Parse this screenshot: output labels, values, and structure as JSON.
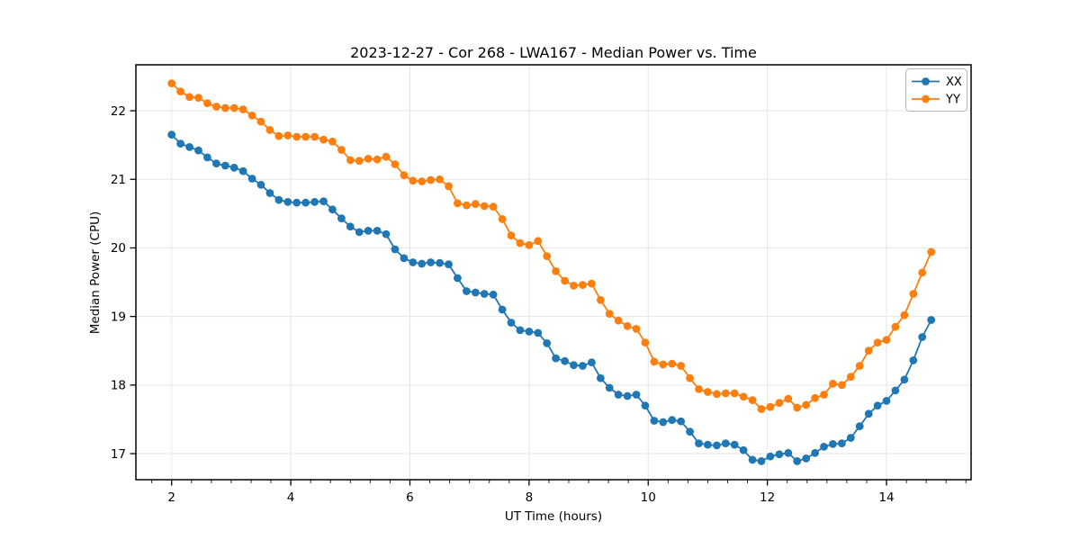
{
  "figure": {
    "background": "#ffffff"
  },
  "chart_data": {
    "type": "line",
    "title": "2023-12-27 - Cor 268 - LWA167 - Median Power vs. Time",
    "xlabel": "UT Time (hours)",
    "ylabel": "Median Power (CPU)",
    "xlim": [
      1.4,
      15.42
    ],
    "ylim": [
      16.62,
      22.67
    ],
    "xticks": [
      2,
      4,
      6,
      8,
      10,
      12,
      14
    ],
    "yticks": [
      17,
      18,
      19,
      20,
      21,
      22
    ],
    "x_minor_step": 0.3333,
    "grid": true,
    "legend_position": "upper right",
    "colors": {
      "grid": "#e6e6e6",
      "spine": "#000000",
      "text": "#000000",
      "legend_border": "#b3b3b3",
      "series_xx": "#1f77b4",
      "series_yy": "#ff7f0e"
    },
    "x": [
      2.0,
      2.15,
      2.3,
      2.45,
      2.6,
      2.75,
      2.9,
      3.05,
      3.2,
      3.35,
      3.5,
      3.65,
      3.8,
      3.95,
      4.1,
      4.25,
      4.4,
      4.55,
      4.7,
      4.85,
      5.0,
      5.15,
      5.3,
      5.45,
      5.6,
      5.75,
      5.9,
      6.05,
      6.2,
      6.35,
      6.5,
      6.65,
      6.8,
      6.95,
      7.1,
      7.25,
      7.4,
      7.55,
      7.7,
      7.85,
      8.0,
      8.15,
      8.3,
      8.45,
      8.6,
      8.75,
      8.9,
      9.05,
      9.2,
      9.35,
      9.5,
      9.65,
      9.8,
      9.95,
      10.1,
      10.25,
      10.4,
      10.55,
      10.7,
      10.85,
      11.0,
      11.15,
      11.3,
      11.45,
      11.6,
      11.75,
      11.9,
      12.05,
      12.2,
      12.35,
      12.5,
      12.65,
      12.8,
      12.95,
      13.1,
      13.25,
      13.4,
      13.55,
      13.7,
      13.85,
      14.0,
      14.15,
      14.3,
      14.45,
      14.6,
      14.75
    ],
    "series": [
      {
        "name": "XX",
        "color": "#1f77b4",
        "marker": "circle",
        "values": [
          21.65,
          21.52,
          21.47,
          21.42,
          21.32,
          21.23,
          21.2,
          21.17,
          21.12,
          21.01,
          20.92,
          20.8,
          20.7,
          20.67,
          20.66,
          20.66,
          20.67,
          20.68,
          20.56,
          20.43,
          20.31,
          20.23,
          20.25,
          20.25,
          20.2,
          19.98,
          19.85,
          19.79,
          19.77,
          19.79,
          19.78,
          19.76,
          19.56,
          19.37,
          19.35,
          19.33,
          19.32,
          19.1,
          18.91,
          18.8,
          18.78,
          18.76,
          18.61,
          18.39,
          18.35,
          18.29,
          18.28,
          18.33,
          18.1,
          17.96,
          17.86,
          17.84,
          17.86,
          17.7,
          17.48,
          17.46,
          17.49,
          17.47,
          17.32,
          17.15,
          17.13,
          17.12,
          17.15,
          17.13,
          17.05,
          16.91,
          16.89,
          16.96,
          16.99,
          17.01,
          16.89,
          16.93,
          17.01,
          17.1,
          17.14,
          17.15,
          17.23,
          17.4,
          17.58,
          17.7,
          17.77,
          17.92,
          18.08,
          18.36,
          18.7,
          18.95
        ]
      },
      {
        "name": "YY",
        "color": "#ff7f0e",
        "marker": "circle",
        "values": [
          22.4,
          22.28,
          22.2,
          22.19,
          22.11,
          22.06,
          22.04,
          22.04,
          22.02,
          21.93,
          21.84,
          21.72,
          21.63,
          21.64,
          21.62,
          21.62,
          21.62,
          21.58,
          21.55,
          21.43,
          21.28,
          21.27,
          21.3,
          21.29,
          21.33,
          21.22,
          21.06,
          20.98,
          20.97,
          20.99,
          21.0,
          20.9,
          20.65,
          20.62,
          20.64,
          20.61,
          20.6,
          20.42,
          20.18,
          20.07,
          20.04,
          20.1,
          19.88,
          19.66,
          19.52,
          19.45,
          19.46,
          19.48,
          19.24,
          19.04,
          18.94,
          18.86,
          18.82,
          18.62,
          18.34,
          18.3,
          18.31,
          18.28,
          18.1,
          17.94,
          17.9,
          17.87,
          17.88,
          17.88,
          17.83,
          17.78,
          17.65,
          17.68,
          17.74,
          17.8,
          17.67,
          17.71,
          17.81,
          17.86,
          18.02,
          18.0,
          18.12,
          18.28,
          18.5,
          18.62,
          18.66,
          18.85,
          19.02,
          19.33,
          19.64,
          19.94
        ]
      }
    ]
  }
}
